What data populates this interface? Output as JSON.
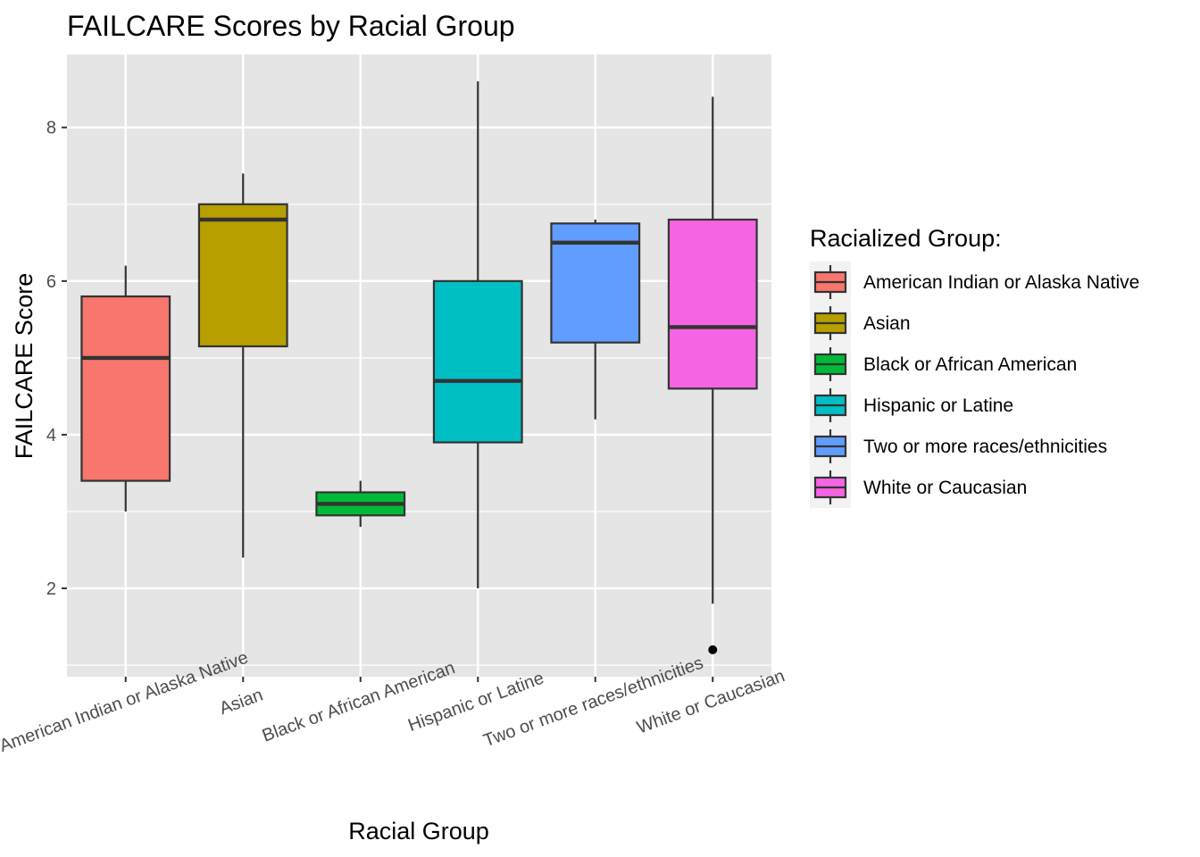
{
  "chart_data": {
    "type": "box",
    "title": "FAILCARE Scores by Racial Group",
    "xlabel": "Racial Group",
    "ylabel": "FAILCARE Score",
    "ylim": [
      0.85,
      8.95
    ],
    "yticks": [
      2,
      4,
      6,
      8
    ],
    "tick_labels": [
      "2",
      "4",
      "6",
      "8"
    ],
    "grid": true,
    "legend": {
      "title": "Racialized Group:",
      "position": "right"
    },
    "categories": [
      "American Indian or Alaska Native",
      "Asian",
      "Black or African American",
      "Hispanic or Latine",
      "Two or more races/ethnicities",
      "White or Caucasian"
    ],
    "series": [
      {
        "name": "American Indian or Alaska Native",
        "color": "#F8766D",
        "min": 3.0,
        "q1": 3.4,
        "median": 5.0,
        "q3": 5.8,
        "max": 6.2,
        "outliers": []
      },
      {
        "name": "Asian",
        "color": "#B79F00",
        "min": 2.4,
        "q1": 5.15,
        "median": 6.8,
        "q3": 7.0,
        "max": 7.4,
        "outliers": []
      },
      {
        "name": "Black or African American",
        "color": "#00BA38",
        "min": 2.8,
        "q1": 2.95,
        "median": 3.1,
        "q3": 3.25,
        "max": 3.4,
        "outliers": []
      },
      {
        "name": "Hispanic or Latine",
        "color": "#00BFC4",
        "min": 2.0,
        "q1": 3.9,
        "median": 4.7,
        "q3": 6.0,
        "max": 8.6,
        "outliers": []
      },
      {
        "name": "Two or more races/ethnicities",
        "color": "#619CFF",
        "min": 4.2,
        "q1": 5.2,
        "median": 6.5,
        "q3": 6.75,
        "max": 6.8,
        "outliers": []
      },
      {
        "name": "White or Caucasian",
        "color": "#F564E3",
        "min": 1.8,
        "q1": 4.6,
        "median": 5.4,
        "q3": 6.8,
        "max": 8.4,
        "outliers": [
          1.2
        ]
      }
    ]
  }
}
